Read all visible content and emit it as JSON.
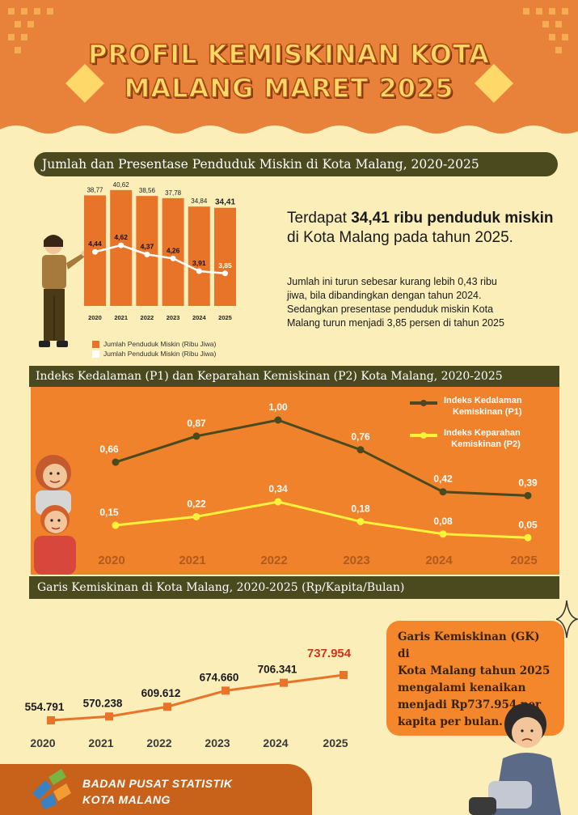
{
  "header": {
    "title_line1": "PROFIL KEMISKINAN KOTA",
    "title_line2": "MALANG MARET 2025"
  },
  "section1": {
    "banner": "Jumlah dan Presentase Penduduk Miskin di Kota Malang, 2020-2025",
    "headline_pre": "Terdapat ",
    "headline_bold": "34,41 ribu penduduk miskin",
    "headline_post": " di Kota Malang pada tahun 2025.",
    "body_line1": "Jumlah ini turun sebesar kurang lebih 0,43 ribu",
    "body_line2": "jiwa, bila dibandingkan dengan tahun 2024.",
    "body_line3": "Sedangkan presentase penduduk miskin Kota",
    "body_line4": "Malang turun menjadi 3,85 persen di tahun 2025",
    "legend1": "Jumlah Penduduk Miskin (Ribu Jiwa)",
    "legend2": "Jumlah Penduduk Miskin (Ribu Jiwa)"
  },
  "section2": {
    "banner": "Indeks Kedalaman (P1) dan Keparahan Kemiskinan (P2) Kota Malang, 2020-2025",
    "legend_p1_line1": "Indeks Kedalaman",
    "legend_p1_line2": "Kemiskinan (P1)",
    "legend_p2_line1": "Indeks Keparahan",
    "legend_p2_line2": "Kemiskinan (P2)"
  },
  "section3": {
    "banner": "Garis Kemiskinan di Kota Malang, 2020-2025 (Rp/Kapita/Bulan)",
    "gk_line1": "Garis Kemiskinan (GK) di",
    "gk_line2": "Kota Malang tahun 2025",
    "gk_line3": "mengalami kenaikan",
    "gk_line4": "menjadi Rp737.954 per",
    "gk_line5": "kapita per bulan."
  },
  "footer": {
    "org_line1": "BADAN PUSAT STATISTIK",
    "org_line2": "KOTA MALANG"
  },
  "colors": {
    "orange": "#e8742a",
    "dark_olive": "#4b4a1f",
    "yellow_line": "#fff23a",
    "cream": "#fbeeb8",
    "highlight_red": "#d3321b"
  },
  "chart_data": [
    {
      "type": "bar",
      "categories": [
        "2020",
        "2021",
        "2022",
        "2023",
        "2024",
        "2025"
      ],
      "series": [
        {
          "name": "Jumlah Penduduk Miskin (Ribu Jiwa)",
          "values": [
            38.77,
            40.62,
            38.56,
            37.78,
            34.84,
            34.41
          ],
          "labels": [
            "38,77",
            "40,62",
            "38,56",
            "37,78",
            "34,84",
            "34,41"
          ]
        },
        {
          "name": "Jumlah Penduduk Miskin (Ribu Jiwa)",
          "values": [
            4.44,
            4.62,
            4.37,
            4.26,
            3.91,
            3.85
          ],
          "labels": [
            "4,44",
            "4,62",
            "4,37",
            "4,26",
            "3,91",
            "3,85"
          ]
        }
      ]
    },
    {
      "type": "line",
      "categories": [
        "2020",
        "2021",
        "2022",
        "2023",
        "2024",
        "2025"
      ],
      "series": [
        {
          "name": "Indeks Kedalaman Kemiskinan (P1)",
          "values": [
            0.66,
            0.87,
            1.0,
            0.76,
            0.42,
            0.39
          ],
          "labels": [
            "0,66",
            "0,87",
            "1,00",
            "0,76",
            "0,42",
            "0,39"
          ]
        },
        {
          "name": "Indeks Keparahan Kemiskinan (P2)",
          "values": [
            0.15,
            0.22,
            0.34,
            0.18,
            0.08,
            0.05
          ],
          "labels": [
            "0,15",
            "0,22",
            "0,34",
            "0,18",
            "0,08",
            "0,05"
          ]
        }
      ]
    },
    {
      "type": "line",
      "categories": [
        "2020",
        "2021",
        "2022",
        "2023",
        "2024",
        "2025"
      ],
      "series": [
        {
          "values": [
            554791,
            570238,
            609612,
            674660,
            706341,
            737954
          ],
          "labels": [
            "554.791",
            "570.238",
            "609.612",
            "674.660",
            "706.341",
            "737.954"
          ]
        }
      ]
    }
  ]
}
